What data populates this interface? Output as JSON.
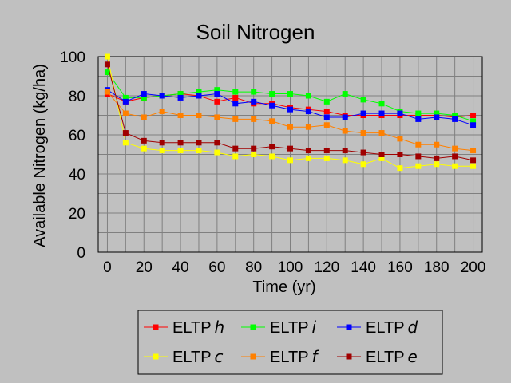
{
  "chart_data": {
    "type": "line",
    "title": "Soil Nitrogen",
    "xlabel": "Time (yr)",
    "ylabel": "Available Nitrogen (kg/ha)",
    "xlim": [
      -5,
      205
    ],
    "ylim": [
      0,
      100
    ],
    "xticks": [
      0,
      20,
      40,
      60,
      80,
      100,
      120,
      140,
      160,
      180,
      200
    ],
    "yticks": [
      0,
      20,
      40,
      60,
      80,
      100
    ],
    "grid": true,
    "legend_position": "bottom",
    "x": [
      0,
      10,
      20,
      30,
      40,
      50,
      60,
      70,
      80,
      90,
      100,
      110,
      120,
      130,
      140,
      150,
      160,
      170,
      180,
      190,
      200
    ],
    "series": [
      {
        "name": "ELTP",
        "sub": "h",
        "color": "#ff0000",
        "values": [
          81,
          77,
          79,
          80,
          81,
          80,
          77,
          79,
          76,
          76,
          74,
          73,
          72,
          70,
          70,
          70,
          70,
          70,
          70,
          69,
          70
        ]
      },
      {
        "name": "ELTP",
        "sub": "i",
        "color": "#00ff00",
        "values": [
          92,
          79,
          79,
          80,
          81,
          82,
          83,
          82,
          82,
          81,
          81,
          80,
          77,
          81,
          78,
          76,
          72,
          71,
          71,
          70,
          67
        ]
      },
      {
        "name": "ELTP",
        "sub": "d",
        "color": "#0000ff",
        "values": [
          83,
          77,
          81,
          80,
          79,
          80,
          81,
          76,
          77,
          75,
          73,
          72,
          69,
          69,
          71,
          71,
          71,
          68,
          69,
          68,
          65
        ]
      },
      {
        "name": "ELTP",
        "sub": "c",
        "color": "#ffff00",
        "values": [
          100,
          56,
          53,
          52,
          52,
          52,
          51,
          49,
          50,
          49,
          47,
          48,
          48,
          47,
          45,
          48,
          43,
          44,
          45,
          44,
          44
        ]
      },
      {
        "name": "ELTP",
        "sub": "f",
        "color": "#ff8000",
        "values": [
          82,
          71,
          69,
          72,
          70,
          70,
          69,
          68,
          68,
          67,
          64,
          64,
          65,
          62,
          61,
          61,
          58,
          55,
          55,
          53,
          52
        ]
      },
      {
        "name": "ELTP",
        "sub": "e",
        "color": "#a00000",
        "values": [
          96,
          61,
          57,
          56,
          56,
          56,
          56,
          53,
          53,
          54,
          53,
          52,
          52,
          52,
          51,
          50,
          50,
          49,
          48,
          49,
          47
        ]
      }
    ]
  }
}
